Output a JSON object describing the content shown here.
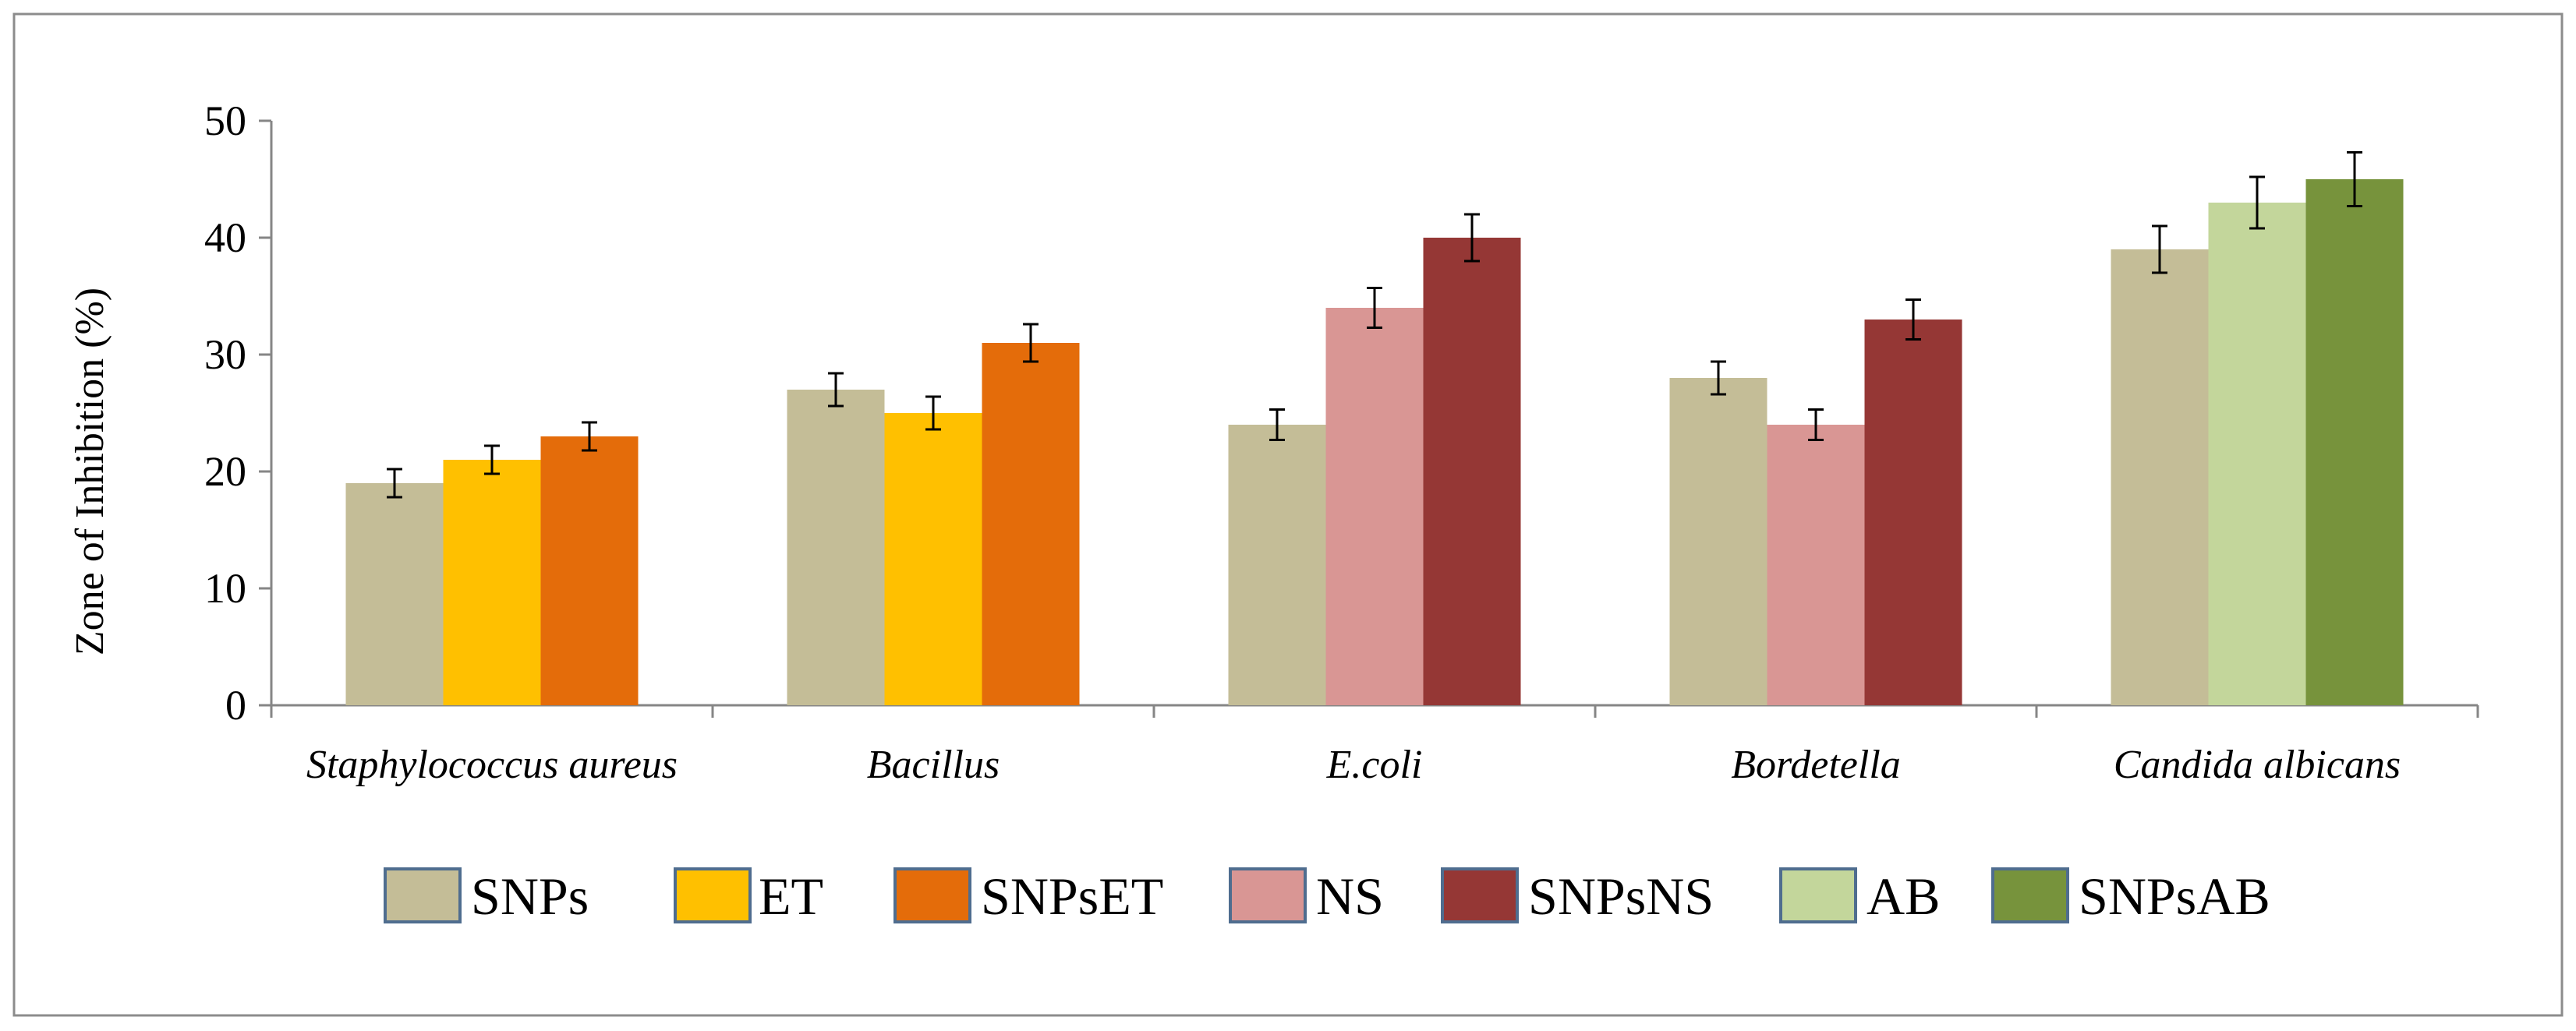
{
  "chart_data": {
    "type": "bar",
    "title": "",
    "xlabel": "",
    "ylabel": "Zone of Inhibition  (%)",
    "ylim": [
      0,
      50
    ],
    "yticks": [
      0,
      10,
      20,
      30,
      40,
      50
    ],
    "grid": false,
    "legend_position": "bottom",
    "categories": [
      "Staphylococcus aureus",
      "Bacillus",
      "E.coli",
      "Bordetella",
      "Candida albicans"
    ],
    "legend": [
      {
        "name": "SNPs",
        "color": "#c4bd97"
      },
      {
        "name": "ET",
        "color": "#ffc000"
      },
      {
        "name": "SNPsET",
        "color": "#e46c0a"
      },
      {
        "name": "NS",
        "color": "#d99694"
      },
      {
        "name": "SNPsNS",
        "color": "#953735"
      },
      {
        "name": "AB",
        "color": "#c3d69b"
      },
      {
        "name": "SNPsAB",
        "color": "#77933c"
      }
    ],
    "groups": [
      {
        "category": "Staphylococcus aureus",
        "bars": [
          {
            "series": "SNPs",
            "value": 19,
            "error": 1.2
          },
          {
            "series": "ET",
            "value": 21,
            "error": 1.2
          },
          {
            "series": "SNPsET",
            "value": 23,
            "error": 1.2
          }
        ]
      },
      {
        "category": "Bacillus",
        "bars": [
          {
            "series": "SNPs",
            "value": 27,
            "error": 1.4
          },
          {
            "series": "ET",
            "value": 25,
            "error": 1.4
          },
          {
            "series": "SNPsET",
            "value": 31,
            "error": 1.6
          }
        ]
      },
      {
        "category": "E.coli",
        "bars": [
          {
            "series": "SNPs",
            "value": 24,
            "error": 1.3
          },
          {
            "series": "NS",
            "value": 34,
            "error": 1.7
          },
          {
            "series": "SNPsNS",
            "value": 40,
            "error": 2.0
          }
        ]
      },
      {
        "category": "Bordetella",
        "bars": [
          {
            "series": "SNPs",
            "value": 28,
            "error": 1.4
          },
          {
            "series": "NS",
            "value": 24,
            "error": 1.3
          },
          {
            "series": "SNPsNS",
            "value": 33,
            "error": 1.7
          }
        ]
      },
      {
        "category": "Candida albicans",
        "bars": [
          {
            "series": "SNPs",
            "value": 39,
            "error": 2.0
          },
          {
            "series": "AB",
            "value": 43,
            "error": 2.2
          },
          {
            "series": "SNPsAB",
            "value": 45,
            "error": 2.3
          }
        ]
      }
    ]
  }
}
